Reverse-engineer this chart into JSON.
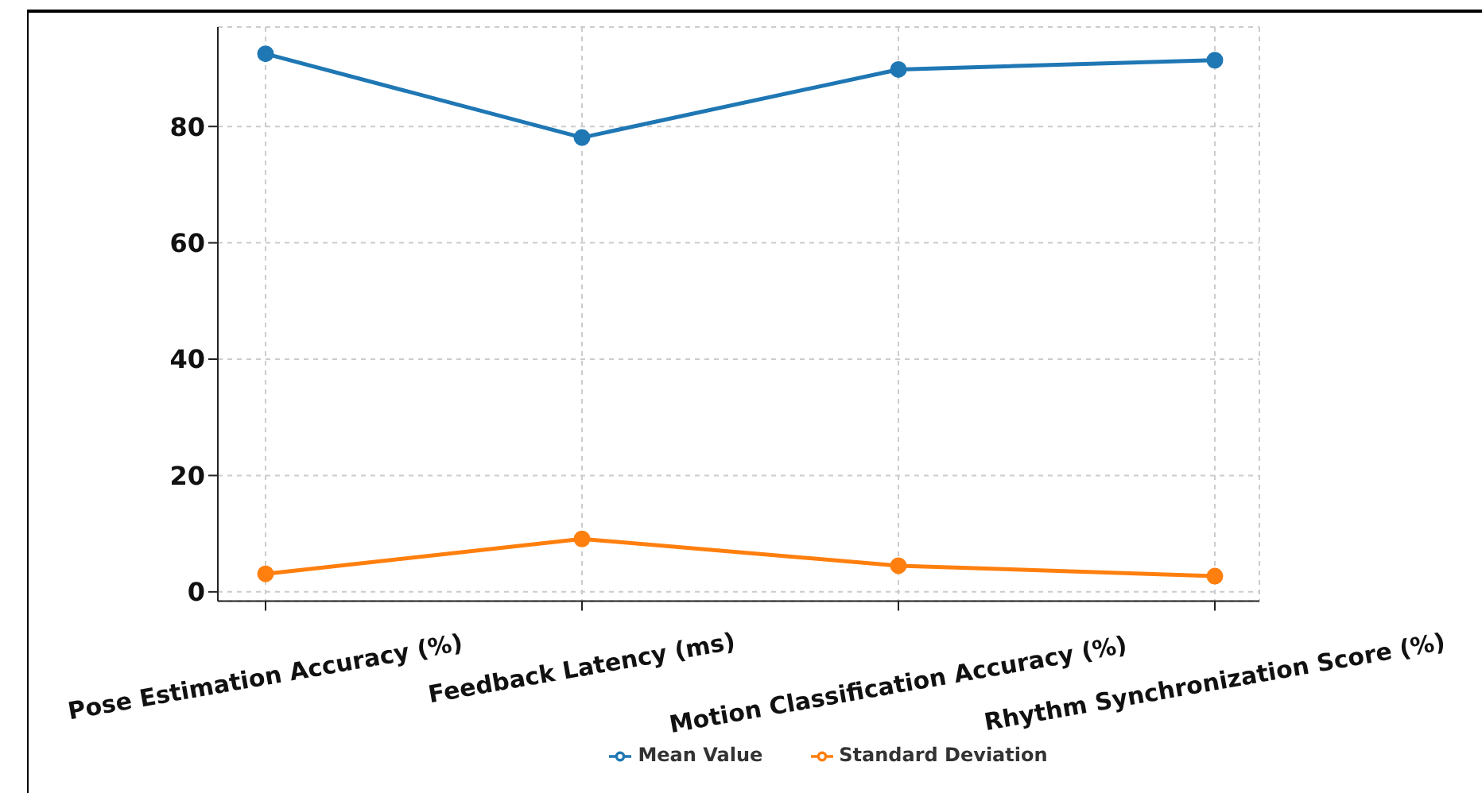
{
  "chart_data": {
    "type": "line",
    "categories": [
      "Pose Estimation Accuracy (%)",
      "Feedback Latency (ms)",
      "Motion Classification Accuracy (%)",
      "Rhythm Synchronization Score (%)"
    ],
    "series": [
      {
        "name": "Mean Value",
        "color": "#1f77b4",
        "values": [
          92.5,
          78.1,
          89.8,
          91.4
        ]
      },
      {
        "name": "Standard Deviation",
        "color": "#ff7f0e",
        "values": [
          3.1,
          9.1,
          4.5,
          2.7
        ]
      }
    ],
    "ylim": [
      -1.6,
      97.1
    ],
    "yticks": [
      0,
      20,
      40,
      60,
      80
    ],
    "grid": true,
    "legend": "bottom",
    "marker": "circle",
    "line_style": "solid"
  }
}
